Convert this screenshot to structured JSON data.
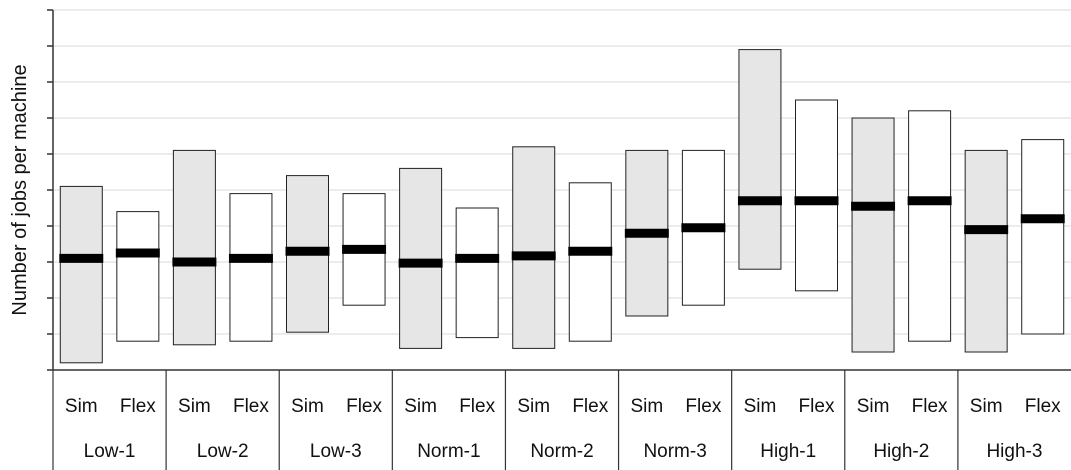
{
  "chart_data": {
    "type": "range-bar",
    "title": "",
    "ylabel": "Number of jobs per machine",
    "xlabel": "",
    "ylim": [
      0,
      10
    ],
    "yticks": [
      0,
      1,
      2,
      3,
      4,
      5,
      6,
      7,
      8,
      9,
      10
    ],
    "ytick_labels_shown": false,
    "grid": "horizontal",
    "series": [
      {
        "name": "Sim",
        "fill": "#e6e6e6"
      },
      {
        "name": "Flex",
        "fill": "#ffffff"
      }
    ],
    "groups": [
      "Low-1",
      "Low-2",
      "Low-3",
      "Norm-1",
      "Norm-2",
      "Norm-3",
      "High-1",
      "High-2",
      "High-3"
    ],
    "bars": [
      {
        "group": "Low-1",
        "label": "Sim",
        "low": 0.2,
        "high": 5.1,
        "median": 3.1
      },
      {
        "group": "Low-1",
        "label": "Flex",
        "low": 0.8,
        "high": 4.4,
        "median": 3.25
      },
      {
        "group": "Low-2",
        "label": "Sim",
        "low": 0.7,
        "high": 6.1,
        "median": 3.0
      },
      {
        "group": "Low-2",
        "label": "Flex",
        "low": 0.8,
        "high": 4.9,
        "median": 3.1
      },
      {
        "group": "Low-3",
        "label": "Sim",
        "low": 1.05,
        "high": 5.4,
        "median": 3.3
      },
      {
        "group": "Low-3",
        "label": "Flex",
        "low": 1.8,
        "high": 4.9,
        "median": 3.35
      },
      {
        "group": "Norm-1",
        "label": "Sim",
        "low": 0.6,
        "high": 5.6,
        "median": 2.97
      },
      {
        "group": "Norm-1",
        "label": "Flex",
        "low": 0.9,
        "high": 4.5,
        "median": 3.1
      },
      {
        "group": "Norm-2",
        "label": "Sim",
        "low": 0.6,
        "high": 6.2,
        "median": 3.17
      },
      {
        "group": "Norm-2",
        "label": "Flex",
        "low": 0.8,
        "high": 5.2,
        "median": 3.3
      },
      {
        "group": "Norm-3",
        "label": "Sim",
        "low": 1.5,
        "high": 6.1,
        "median": 3.8
      },
      {
        "group": "Norm-3",
        "label": "Flex",
        "low": 1.8,
        "high": 6.1,
        "median": 3.95
      },
      {
        "group": "High-1",
        "label": "Sim",
        "low": 2.8,
        "high": 8.9,
        "median": 4.7
      },
      {
        "group": "High-1",
        "label": "Flex",
        "low": 2.2,
        "high": 7.5,
        "median": 4.7
      },
      {
        "group": "High-2",
        "label": "Sim",
        "low": 0.5,
        "high": 7.0,
        "median": 4.55
      },
      {
        "group": "High-2",
        "label": "Flex",
        "low": 0.8,
        "high": 7.2,
        "median": 4.7
      },
      {
        "group": "High-3",
        "label": "Sim",
        "low": 0.5,
        "high": 6.1,
        "median": 3.9
      },
      {
        "group": "High-3",
        "label": "Flex",
        "low": 1.0,
        "high": 6.4,
        "median": 4.2
      }
    ]
  }
}
